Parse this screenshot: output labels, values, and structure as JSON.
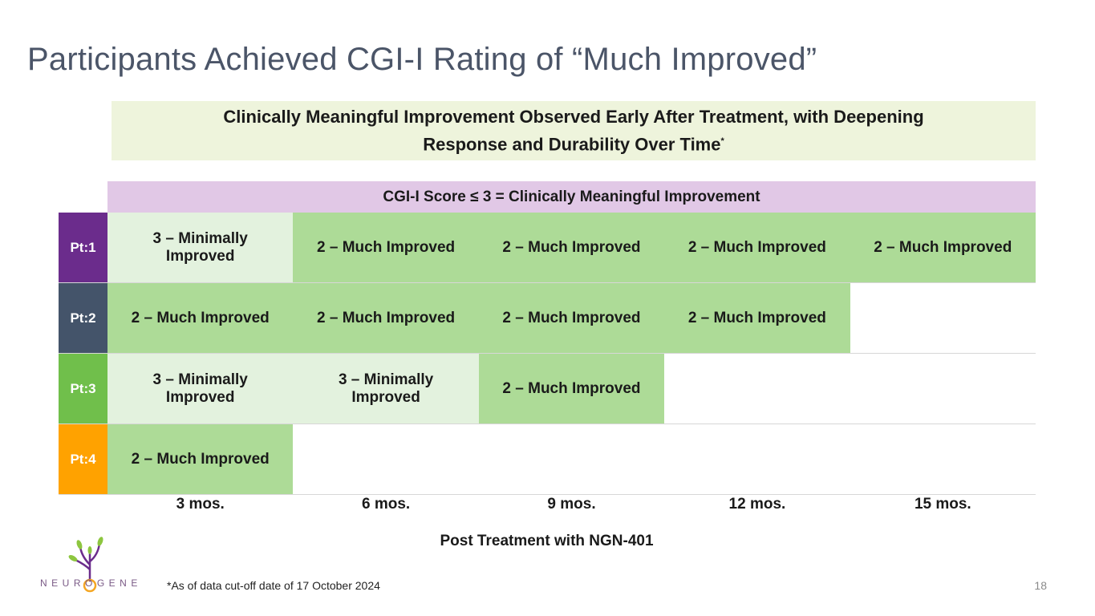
{
  "title": "Participants Achieved CGI-I Rating of “Much Improved”",
  "banner": {
    "line1": "Clinically Meaningful Improvement Observed Early After Treatment, with Deepening",
    "line2": "Response and Durability Over Time",
    "marker": "*"
  },
  "score_header": "CGI-I Score ≤ 3 = Clinically Meaningful Improvement",
  "rows": [
    {
      "label": "Pt:1",
      "cells": [
        "3 – Minimally Improved",
        "2 – Much Improved",
        "2 – Much Improved",
        "2 – Much Improved",
        "2 – Much Improved"
      ]
    },
    {
      "label": "Pt:2",
      "cells": [
        "2 – Much Improved",
        "2 – Much Improved",
        "2 – Much Improved",
        "2 – Much Improved",
        ""
      ]
    },
    {
      "label": "Pt:3",
      "cells": [
        "3 – Minimally Improved",
        "3 – Minimally Improved",
        "2 – Much Improved",
        "",
        ""
      ]
    },
    {
      "label": "Pt:4",
      "cells": [
        "2 – Much Improved",
        "",
        "",
        "",
        ""
      ]
    }
  ],
  "timepoints": [
    "3 mos.",
    "6 mos.",
    "9 mos.",
    "12 mos.",
    "15 mos."
  ],
  "axis_title": "Post Treatment with NGN-401",
  "footnote": "*As of data cut-off date of 17 October 2024",
  "page_number": "18",
  "logo_text": "NEUROGENE",
  "colors": {
    "much_improved": "#addb97",
    "minimally_improved": "#e3f2de",
    "pt1": "#6b2c8c",
    "pt2": "#44546a",
    "pt3": "#70bf4b",
    "pt4": "#ffa200"
  }
}
